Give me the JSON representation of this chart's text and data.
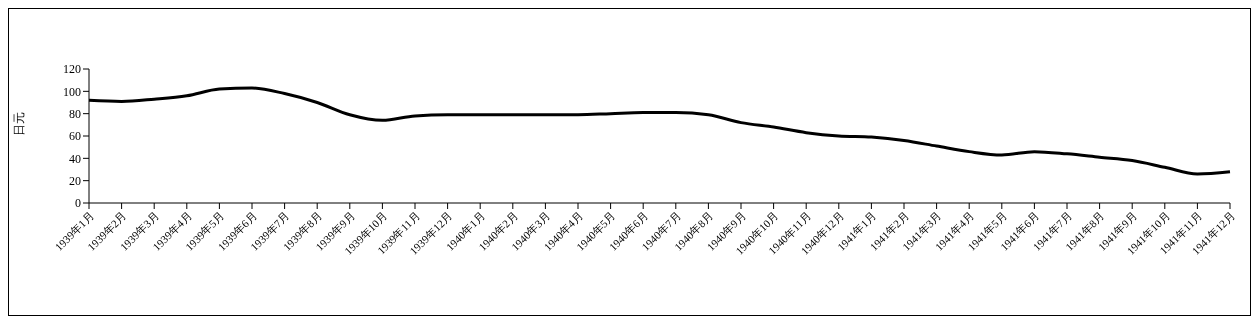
{
  "chart_data": {
    "type": "line",
    "ylabel": "日元",
    "categories": [
      "1939年1月",
      "1939年2月",
      "1939年3月",
      "1939年4月",
      "1939年5月",
      "1939年6月",
      "1939年7月",
      "1939年8月",
      "1939年9月",
      "1939年10月",
      "1939年11月",
      "1939年12月",
      "1940年1月",
      "1940年2月",
      "1940年3月",
      "1940年4月",
      "1940年5月",
      "1940年6月",
      "1940年7月",
      "1940年8月",
      "1940年9月",
      "1940年10月",
      "1940年11月",
      "1940年12月",
      "1941年1月",
      "1941年2月",
      "1941年3月",
      "1941年4月",
      "1941年5月",
      "1941年6月",
      "1941年7月",
      "1941年8月",
      "1941年9月",
      "1941年10月",
      "1941年11月",
      "1941年12月"
    ],
    "series": [
      {
        "color": "#000000",
        "values": [
          92,
          91,
          93,
          96,
          102,
          103,
          98,
          90,
          79,
          74,
          78,
          79,
          79,
          79,
          79,
          79,
          80,
          81,
          81,
          79,
          72,
          68,
          63,
          60,
          59,
          56,
          51,
          46,
          43,
          46,
          44,
          41,
          38,
          32,
          26,
          28
        ]
      }
    ],
    "ylim": [
      0,
      120
    ],
    "yticks": [
      0,
      20,
      40,
      60,
      80,
      100,
      120
    ]
  }
}
